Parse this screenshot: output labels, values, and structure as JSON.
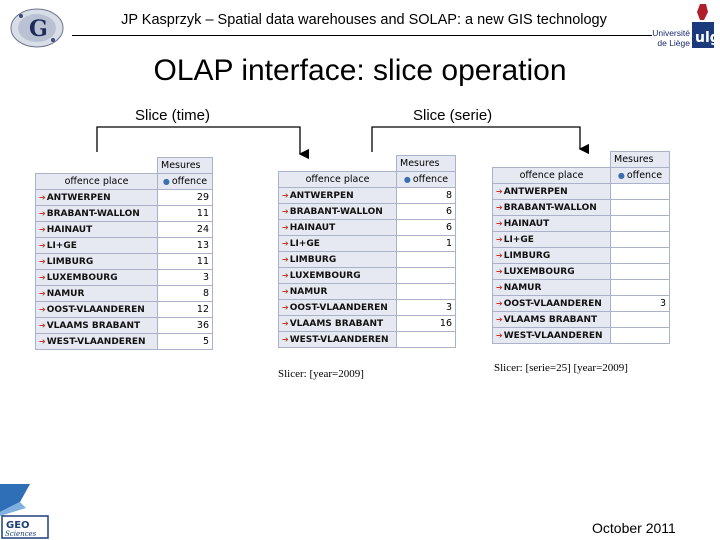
{
  "header": {
    "title": "JP Kasprzyk – Spatial data warehouses and SOLAP: a new GIS technology",
    "logo_left": "G",
    "logo_right_line1": "Université",
    "logo_right_line2": "de Liège",
    "logo_right_mark": "ulg"
  },
  "slide": {
    "title": "OLAP interface: slice operation",
    "label_time": "Slice (time)",
    "label_serie": "Slice (serie)"
  },
  "table1": {
    "measures_header": "Mesures",
    "dim_header": "offence place",
    "measure_header": "offence",
    "rows": [
      {
        "place": "ANTWERPEN",
        "value": "29"
      },
      {
        "place": "BRABANT-WALLON",
        "value": "11"
      },
      {
        "place": "HAINAUT",
        "value": "24"
      },
      {
        "place": "LI+GE",
        "value": "13"
      },
      {
        "place": "LIMBURG",
        "value": "11"
      },
      {
        "place": "LUXEMBOURG",
        "value": "3"
      },
      {
        "place": "NAMUR",
        "value": "8"
      },
      {
        "place": "OOST-VLAANDEREN",
        "value": "12"
      },
      {
        "place": "VLAAMS BRABANT",
        "value": "36"
      },
      {
        "place": "WEST-VLAANDEREN",
        "value": "5"
      }
    ]
  },
  "table2": {
    "measures_header": "Mesures",
    "dim_header": "offence place",
    "measure_header": "offence",
    "rows": [
      {
        "place": "ANTWERPEN",
        "value": "8"
      },
      {
        "place": "BRABANT-WALLON",
        "value": "6"
      },
      {
        "place": "HAINAUT",
        "value": "6"
      },
      {
        "place": "LI+GE",
        "value": "1"
      },
      {
        "place": "LIMBURG",
        "value": ""
      },
      {
        "place": "LUXEMBOURG",
        "value": ""
      },
      {
        "place": "NAMUR",
        "value": ""
      },
      {
        "place": "OOST-VLAANDEREN",
        "value": "3"
      },
      {
        "place": "VLAAMS BRABANT",
        "value": "16"
      },
      {
        "place": "WEST-VLAANDEREN",
        "value": ""
      }
    ],
    "slicer": "Slicer: [year=2009]"
  },
  "table3": {
    "measures_header": "Mesures",
    "dim_header": "offence place",
    "measure_header": "offence",
    "rows": [
      {
        "place": "ANTWERPEN",
        "value": ""
      },
      {
        "place": "BRABANT-WALLON",
        "value": ""
      },
      {
        "place": "HAINAUT",
        "value": ""
      },
      {
        "place": "LI+GE",
        "value": ""
      },
      {
        "place": "LIMBURG",
        "value": ""
      },
      {
        "place": "LUXEMBOURG",
        "value": ""
      },
      {
        "place": "NAMUR",
        "value": ""
      },
      {
        "place": "OOST-VLAANDEREN",
        "value": "3"
      },
      {
        "place": "VLAAMS BRABANT",
        "value": ""
      },
      {
        "place": "WEST-VLAANDEREN",
        "value": ""
      }
    ],
    "slicer": "Slicer: [serie=25] [year=2009]"
  },
  "footer": {
    "logo_line1": "GEO",
    "logo_line2": "Sciences",
    "date": "October 2011"
  },
  "colors": {
    "row_header_bg": "#e6e9f2",
    "border": "#a9b2c8",
    "expand_arrow": "#c0392b",
    "sort_dot": "#3a6fb0"
  }
}
